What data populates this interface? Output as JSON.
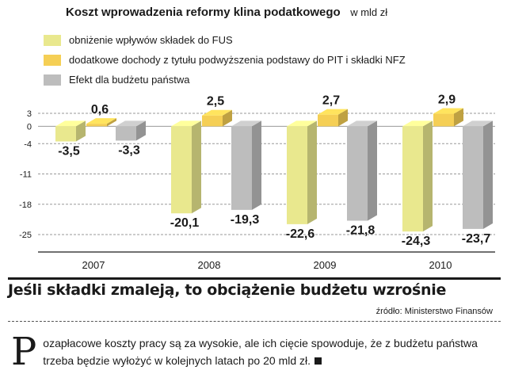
{
  "header": {
    "title": "Koszt wprowadzenia reformy klina podatkowego",
    "unit": "w mld zł"
  },
  "legend": [
    {
      "label": "obniżenie wpływów składek do FUS",
      "color": "#e9e88e"
    },
    {
      "label": "dodatkowe dochody z tytułu podwyższenia podstawy do PIT i składki NFZ",
      "color": "#f5cf55"
    },
    {
      "label": "Efekt dla budżetu państwa",
      "color": "#bdbdbd"
    }
  ],
  "chart_data": {
    "type": "bar",
    "categories": [
      "2007",
      "2008",
      "2009",
      "2010"
    ],
    "series": [
      {
        "name": "obniżenie wpływów składek do FUS",
        "values": [
          -3.5,
          -20.1,
          -22.6,
          -24.3
        ],
        "labels": [
          "-3,5",
          "-20,1",
          "-22,6",
          "-24,3"
        ],
        "color": "#e9e88e"
      },
      {
        "name": "dodatkowe dochody z tytułu podwyższenia podstawy do PIT i składki NFZ",
        "values": [
          0.6,
          2.5,
          2.7,
          2.9
        ],
        "labels": [
          "0,6",
          "2,5",
          "2,7",
          "2,9"
        ],
        "color": "#f5cf55"
      },
      {
        "name": "Efekt dla budżetu państwa",
        "values": [
          -3.3,
          -19.3,
          -21.8,
          -23.7
        ],
        "labels": [
          "-3,3",
          "-19,3",
          "-21,8",
          "-23,7"
        ],
        "color": "#bdbdbd"
      }
    ],
    "yticks": [
      3,
      0,
      -4,
      -11,
      -18,
      -25
    ],
    "ylim": [
      -25,
      3
    ],
    "grid": "horizontal dashed"
  },
  "headline": "Jeśli składki zmaleją, to obciążenie budżetu wzrośnie",
  "source": "źródło: Ministerstwo Finansów",
  "article": {
    "dropcap": "P",
    "text": "ozapłacowe koszty pracy są za wysokie, ale ich cięcie spowoduje,  że z budżetu państwa trzeba będzie wyłożyć w kolejnych latach po 20 mld zł."
  }
}
